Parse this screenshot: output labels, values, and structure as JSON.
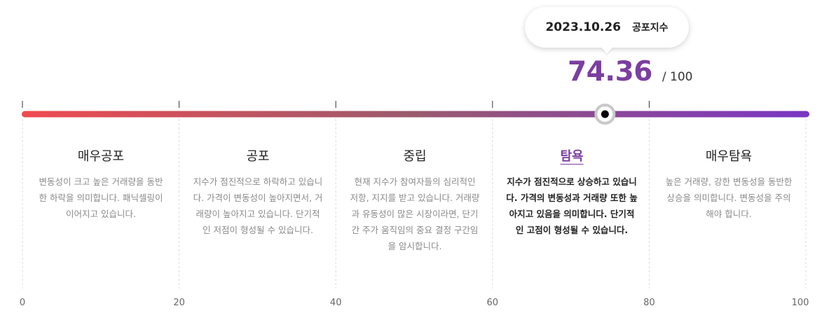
{
  "tooltip": {
    "date": "2023.10.26",
    "label": "공포지수"
  },
  "score": {
    "value": "74.36",
    "max_text": "/ 100"
  },
  "colors": {
    "gradient_start": "#ef4b50",
    "gradient_mid": "#9a5a6e",
    "gradient_end": "#7a35c4",
    "value_text": "#7b3fa0",
    "active_title": "#7b3fa0",
    "marker_ring": "#c8c8c8",
    "marker_dot": "#000000",
    "divider": "#dcdcdc"
  },
  "zones": [
    {
      "title": "매우공포",
      "description": "변동성이 크고 높은 거래량을 동반한 하락을 의미합니다. 패닉셀링이 이어지고 있습니다.",
      "active": false
    },
    {
      "title": "공포",
      "description": "지수가 점진적으로 하락하고 있습니다. 가격이 변동성이 높아지면서, 거래량이 높아지고 있습니다. 단기적인 저점이 형성될 수 있습니다.",
      "active": false
    },
    {
      "title": "중립",
      "description": "현재 지수가 참여자들의 심리적인 저항, 지지를 받고 있습니다. 거래량과 유동성이 많은 시장이라면, 단기간 주가 움직임의 중요 결정 구간임을 암시합니다.",
      "active": false
    },
    {
      "title": "탐욕",
      "description": "지수가 점진적으로 상승하고 있습니다. 가격의 변동성과 거래량 또한 높아지고 있음을 의미합니다. 단기적인 고점이 형성될 수 있습니다.",
      "active": true
    },
    {
      "title": "매우탐욕",
      "description": "높은 거래량, 강한 변동성을 동반한 상승을 의미합니다. 변동성을 주의해야 합니다.",
      "active": false
    }
  ],
  "chart_data": {
    "type": "gauge",
    "value": 74.36,
    "range": [
      0,
      100
    ],
    "ticks": [
      0,
      20,
      40,
      60,
      80,
      100
    ],
    "bands": [
      {
        "label": "매우공포",
        "from": 0,
        "to": 20
      },
      {
        "label": "공포",
        "from": 20,
        "to": 40
      },
      {
        "label": "중립",
        "from": 40,
        "to": 60
      },
      {
        "label": "탐욕",
        "from": 60,
        "to": 80
      },
      {
        "label": "매우탐욕",
        "from": 80,
        "to": 100
      }
    ],
    "active_band": "탐욕"
  }
}
